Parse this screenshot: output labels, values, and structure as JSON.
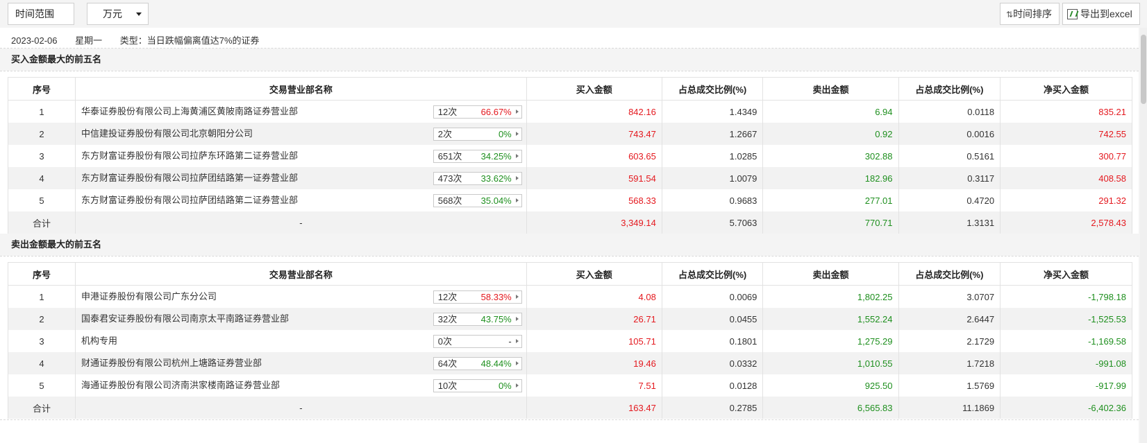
{
  "toolbar": {
    "time_range_label": "时间范围",
    "unit_selected": "万元",
    "sort_label": "时间排序",
    "export_label": "导出到excel"
  },
  "info": {
    "date": "2023-02-06",
    "weekday": "星期一",
    "type_text": "类型：当日跌幅偏离值达7%的证券"
  },
  "columns": [
    "序号",
    "交易营业部名称",
    "买入金额",
    "占总成交比例(%)",
    "卖出金额",
    "占总成交比例(%)",
    "净买入金额"
  ],
  "buy_section": {
    "title": "买入金额最大的前五名",
    "rows": [
      {
        "no": "1",
        "name": "华泰证券股份有限公司上海黄浦区黄陂南路证券营业部",
        "count": "12次",
        "pct": "66.67%",
        "pct_color": "red",
        "buy": "842.16",
        "buy_ratio": "1.4349",
        "sell": "6.94",
        "sell_ratio": "0.0118",
        "net": "835.21"
      },
      {
        "no": "2",
        "name": "中信建投证券股份有限公司北京朝阳分公司",
        "count": "2次",
        "pct": "0%",
        "pct_color": "green",
        "buy": "743.47",
        "buy_ratio": "1.2667",
        "sell": "0.92",
        "sell_ratio": "0.0016",
        "net": "742.55"
      },
      {
        "no": "3",
        "name": "东方财富证券股份有限公司拉萨东环路第二证券营业部",
        "count": "651次",
        "pct": "34.25%",
        "pct_color": "green",
        "buy": "603.65",
        "buy_ratio": "1.0285",
        "sell": "302.88",
        "sell_ratio": "0.5161",
        "net": "300.77"
      },
      {
        "no": "4",
        "name": "东方财富证券股份有限公司拉萨团结路第一证券营业部",
        "count": "473次",
        "pct": "33.62%",
        "pct_color": "green",
        "buy": "591.54",
        "buy_ratio": "1.0079",
        "sell": "182.96",
        "sell_ratio": "0.3117",
        "net": "408.58"
      },
      {
        "no": "5",
        "name": "东方财富证券股份有限公司拉萨团结路第二证券营业部",
        "count": "568次",
        "pct": "35.04%",
        "pct_color": "green",
        "buy": "568.33",
        "buy_ratio": "0.9683",
        "sell": "277.01",
        "sell_ratio": "0.4720",
        "net": "291.32"
      }
    ],
    "total": {
      "label": "合计",
      "name": "-",
      "buy": "3,349.14",
      "buy_ratio": "5.7063",
      "sell": "770.71",
      "sell_ratio": "1.3131",
      "net": "2,578.43"
    }
  },
  "sell_section": {
    "title": "卖出金额最大的前五名",
    "rows": [
      {
        "no": "1",
        "name": "申港证券股份有限公司广东分公司",
        "count": "12次",
        "pct": "58.33%",
        "pct_color": "red",
        "buy": "4.08",
        "buy_ratio": "0.0069",
        "sell": "1,802.25",
        "sell_ratio": "3.0707",
        "net": "-1,798.18"
      },
      {
        "no": "2",
        "name": "国泰君安证券股份有限公司南京太平南路证券营业部",
        "count": "32次",
        "pct": "43.75%",
        "pct_color": "green",
        "buy": "26.71",
        "buy_ratio": "0.0455",
        "sell": "1,552.24",
        "sell_ratio": "2.6447",
        "net": "-1,525.53"
      },
      {
        "no": "3",
        "name": "机构专用",
        "count": "0次",
        "pct": "-",
        "pct_color": "plain",
        "buy": "105.71",
        "buy_ratio": "0.1801",
        "sell": "1,275.29",
        "sell_ratio": "2.1729",
        "net": "-1,169.58"
      },
      {
        "no": "4",
        "name": "财通证券股份有限公司杭州上塘路证券营业部",
        "count": "64次",
        "pct": "48.44%",
        "pct_color": "green",
        "buy": "19.46",
        "buy_ratio": "0.0332",
        "sell": "1,010.55",
        "sell_ratio": "1.7218",
        "net": "-991.08"
      },
      {
        "no": "5",
        "name": "海通证券股份有限公司济南洪家楼南路证券营业部",
        "count": "10次",
        "pct": "0%",
        "pct_color": "green",
        "buy": "7.51",
        "buy_ratio": "0.0128",
        "sell": "925.50",
        "sell_ratio": "1.5769",
        "net": "-917.99"
      }
    ],
    "total": {
      "label": "合计",
      "name": "-",
      "buy": "163.47",
      "buy_ratio": "0.2785",
      "sell": "6,565.83",
      "sell_ratio": "11.1869",
      "net": "-6,402.36"
    }
  },
  "colors": {
    "up": "#e4181e",
    "down": "#1e8f1e",
    "row_stripe": "#f2f2f2"
  }
}
